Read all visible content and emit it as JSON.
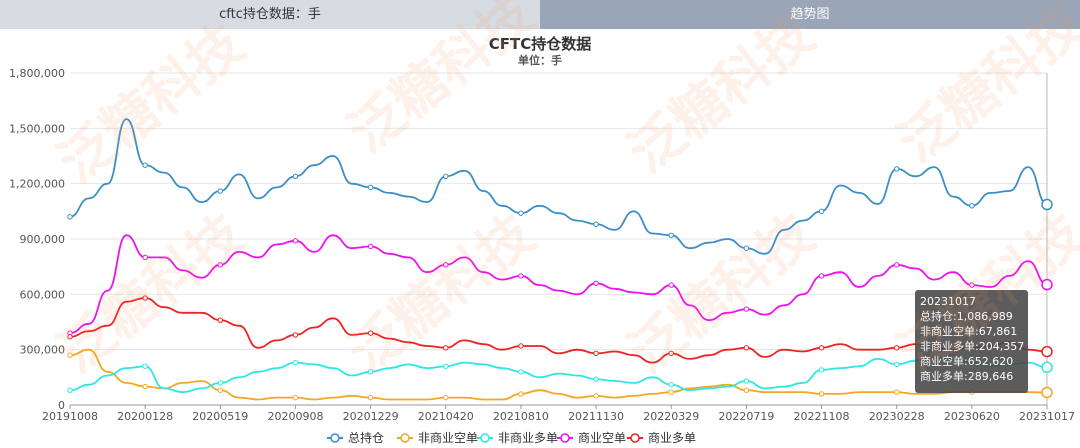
{
  "tabs": [
    {
      "label": "cftc持仓数据：手"
    },
    {
      "label": "趋势图"
    }
  ],
  "watermark": "泛糖科技",
  "tooltip": {
    "date": "20231017",
    "lines": [
      "总持仓:1,086,989",
      "非商业空单:67,861",
      "非商业多单:204,357",
      "商业空单:652,620",
      "商业多单:289,646"
    ]
  },
  "colors": {
    "total": "#3b8fc8",
    "noncomm_short": "#f5a623",
    "noncomm_long": "#2ee6e6",
    "comm_short": "#ee11ee",
    "comm_long": "#ee2222",
    "tab_active_bg": "#9aa6b7",
    "tab_bg": "#d7dce3"
  },
  "chart_data": {
    "type": "line",
    "title": "CFTC持仓数据",
    "subtitle": "单位：手",
    "ylim": [
      0,
      1800000
    ],
    "y_ticks": [
      "0",
      "300,000",
      "600,000",
      "900,000",
      "1,200,000",
      "1,500,000",
      "1,800,000"
    ],
    "x_ticks": [
      "20191008",
      "20200128",
      "20200519",
      "20200908",
      "20201229",
      "20210420",
      "20210810",
      "20211130",
      "20220329",
      "20220719",
      "20221108",
      "20230228",
      "20230620",
      "20231017"
    ],
    "legend_position": "bottom",
    "grid": true,
    "series": [
      {
        "name": "总持仓",
        "color_key": "total",
        "values": [
          1020000,
          1120000,
          1200000,
          1550000,
          1300000,
          1260000,
          1180000,
          1100000,
          1160000,
          1250000,
          1120000,
          1180000,
          1240000,
          1300000,
          1350000,
          1200000,
          1180000,
          1150000,
          1130000,
          1100000,
          1240000,
          1270000,
          1160000,
          1080000,
          1040000,
          1080000,
          1040000,
          1000000,
          980000,
          950000,
          1050000,
          930000,
          920000,
          850000,
          880000,
          900000,
          850000,
          820000,
          950000,
          1000000,
          1050000,
          1190000,
          1150000,
          1090000,
          1280000,
          1240000,
          1290000,
          1130000,
          1080000,
          1150000,
          1160000,
          1290000,
          1086989
        ]
      },
      {
        "name": "非商业空单",
        "color_key": "noncomm_short",
        "values": [
          270000,
          300000,
          180000,
          120000,
          100000,
          90000,
          120000,
          130000,
          80000,
          40000,
          30000,
          40000,
          40000,
          30000,
          40000,
          50000,
          40000,
          30000,
          30000,
          30000,
          40000,
          40000,
          30000,
          30000,
          60000,
          80000,
          60000,
          40000,
          50000,
          40000,
          50000,
          60000,
          70000,
          90000,
          100000,
          110000,
          80000,
          70000,
          70000,
          70000,
          60000,
          60000,
          70000,
          70000,
          70000,
          60000,
          60000,
          70000,
          70000,
          70000,
          70000,
          70000,
          67861
        ]
      },
      {
        "name": "非商业多单",
        "color_key": "noncomm_long",
        "values": [
          80000,
          110000,
          160000,
          200000,
          210000,
          90000,
          70000,
          90000,
          120000,
          150000,
          180000,
          200000,
          230000,
          220000,
          200000,
          160000,
          180000,
          200000,
          220000,
          200000,
          210000,
          230000,
          220000,
          200000,
          180000,
          150000,
          170000,
          160000,
          140000,
          130000,
          120000,
          150000,
          110000,
          80000,
          90000,
          100000,
          130000,
          90000,
          100000,
          120000,
          190000,
          200000,
          210000,
          250000,
          220000,
          240000,
          260000,
          250000,
          230000,
          210000,
          220000,
          230000,
          204357
        ]
      },
      {
        "name": "商业空单",
        "color_key": "comm_short",
        "values": [
          390000,
          440000,
          620000,
          920000,
          800000,
          800000,
          730000,
          690000,
          760000,
          830000,
          800000,
          870000,
          890000,
          830000,
          920000,
          850000,
          860000,
          820000,
          800000,
          720000,
          760000,
          800000,
          720000,
          680000,
          700000,
          650000,
          620000,
          600000,
          660000,
          630000,
          610000,
          600000,
          650000,
          540000,
          460000,
          500000,
          520000,
          490000,
          540000,
          600000,
          700000,
          720000,
          640000,
          700000,
          760000,
          740000,
          680000,
          720000,
          650000,
          640000,
          700000,
          780000,
          652620
        ]
      },
      {
        "name": "商业多单",
        "color_key": "comm_long",
        "values": [
          370000,
          400000,
          430000,
          560000,
          580000,
          530000,
          500000,
          500000,
          460000,
          430000,
          310000,
          350000,
          380000,
          420000,
          470000,
          380000,
          390000,
          360000,
          340000,
          320000,
          310000,
          350000,
          330000,
          300000,
          320000,
          320000,
          280000,
          300000,
          280000,
          290000,
          270000,
          230000,
          280000,
          250000,
          270000,
          300000,
          310000,
          260000,
          300000,
          290000,
          310000,
          330000,
          300000,
          300000,
          310000,
          330000,
          310000,
          300000,
          310000,
          320000,
          340000,
          300000,
          289646
        ]
      }
    ]
  }
}
